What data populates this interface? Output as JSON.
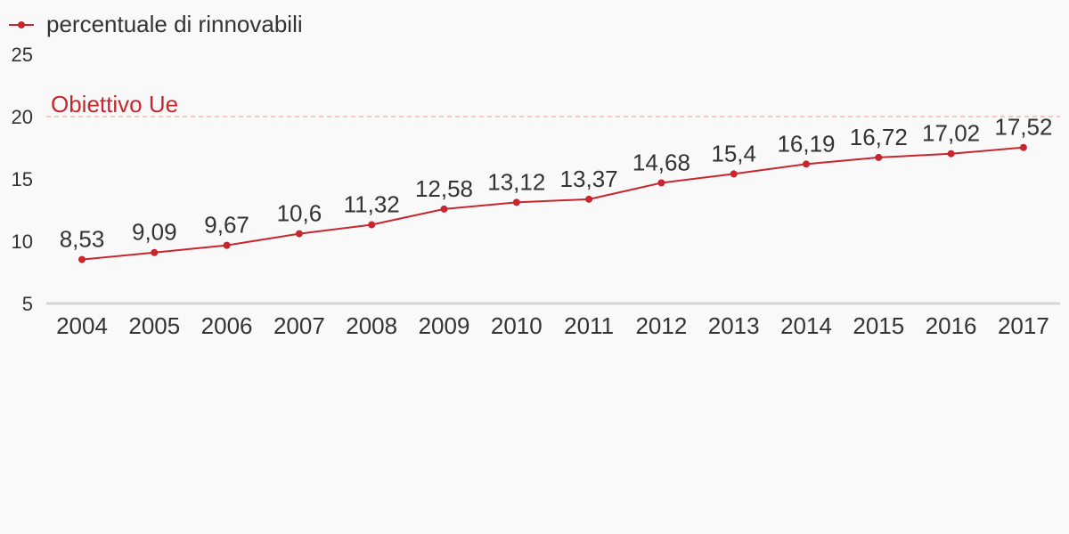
{
  "chart_data": {
    "type": "line",
    "categories": [
      "2004",
      "2005",
      "2006",
      "2007",
      "2008",
      "2009",
      "2010",
      "2011",
      "2012",
      "2013",
      "2014",
      "2015",
      "2016",
      "2017"
    ],
    "series": [
      {
        "name": "percentuale di rinnovabili",
        "values": [
          8.53,
          9.09,
          9.67,
          10.6,
          11.32,
          12.58,
          13.12,
          13.37,
          14.68,
          15.4,
          16.19,
          16.72,
          17.02,
          17.52
        ],
        "labels": [
          "8,53",
          "9,09",
          "9,67",
          "10,6",
          "11,32",
          "12,58",
          "13,12",
          "13,37",
          "14,68",
          "15,4",
          "16,19",
          "16,72",
          "17,02",
          "17,52"
        ],
        "color": "#c8262e"
      }
    ],
    "y_ticks": [
      "25",
      "20",
      "15",
      "10",
      "5"
    ],
    "y_tick_values": [
      25,
      20,
      15,
      10,
      5
    ],
    "ylim": [
      5,
      25
    ],
    "reference_line": {
      "value": 20,
      "label": "Obiettivo Ue",
      "color": "#c8262e",
      "line_color": "#f2b8b8",
      "style": "dashed"
    },
    "legend_position": "top-left",
    "grid": false,
    "axis_color": "#d6d6d6",
    "background": "#f9f9f9"
  }
}
